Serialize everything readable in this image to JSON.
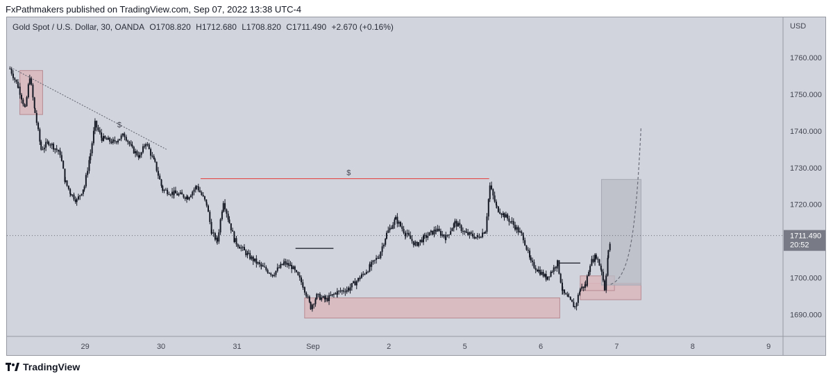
{
  "header": {
    "publisher_text": "FxPathmakers published on TradingView.com, Sep 07, 2022 13:38 UTC-4"
  },
  "legend": {
    "symbol": "Gold Spot / U.S. Dollar, 30, OANDA",
    "open": "O1708.820",
    "high": "H1712.680",
    "low": "L1708.820",
    "close": "C1711.490",
    "change": "+2.670 (+0.16%)"
  },
  "footer": {
    "brand": "TradingView"
  },
  "colors": {
    "background": "#d1d4dc",
    "candle": "#131722",
    "resistance_line": "#e53935",
    "zone_fill": "#d9b7bd",
    "zone_stroke": "#b88a92",
    "projection_box": "#b9bcc6"
  },
  "chart_data": {
    "type": "candlestick",
    "currency_label": "USD",
    "ylim": [
      1684,
      1771
    ],
    "y_ticks": [
      1690,
      1700,
      1710,
      1720,
      1730,
      1740,
      1750,
      1760
    ],
    "y_tick_labels": [
      "1690.000",
      "1700.000",
      "1710.000",
      "1720.000",
      "1730.000",
      "1740.000",
      "1750.000",
      "1760.000"
    ],
    "x_ticks": [
      {
        "label": "29",
        "t": 0.53
      },
      {
        "label": "30",
        "t": 1.53
      },
      {
        "label": "31",
        "t": 2.53
      },
      {
        "label": "Sep",
        "t": 3.53
      },
      {
        "label": "2",
        "t": 4.53
      },
      {
        "label": "5",
        "t": 5.53
      },
      {
        "label": "6",
        "t": 6.53
      },
      {
        "label": "7",
        "t": 7.53
      },
      {
        "label": "8",
        "t": 8.53
      },
      {
        "label": "9",
        "t": 9.53
      }
    ],
    "xlim": [
      -0.5,
      9.72
    ],
    "current_price": {
      "value": 1711.49,
      "label": "1711.490",
      "countdown": "20:52"
    },
    "price_path": [
      [
        -0.46,
        1757
      ],
      [
        -0.35,
        1752
      ],
      [
        -0.26,
        1746
      ],
      [
        -0.2,
        1755
      ],
      [
        -0.13,
        1745
      ],
      [
        -0.05,
        1735
      ],
      [
        0.05,
        1737
      ],
      [
        0.2,
        1734
      ],
      [
        0.27,
        1726
      ],
      [
        0.34,
        1723
      ],
      [
        0.42,
        1721
      ],
      [
        0.52,
        1725
      ],
      [
        0.6,
        1734
      ],
      [
        0.66,
        1742
      ],
      [
        0.75,
        1738
      ],
      [
        0.9,
        1737
      ],
      [
        1.05,
        1739
      ],
      [
        1.15,
        1735
      ],
      [
        1.25,
        1733
      ],
      [
        1.33,
        1737
      ],
      [
        1.45,
        1731
      ],
      [
        1.55,
        1724
      ],
      [
        1.7,
        1723
      ],
      [
        1.88,
        1722
      ],
      [
        2.0,
        1725
      ],
      [
        2.13,
        1720
      ],
      [
        2.2,
        1712
      ],
      [
        2.27,
        1710
      ],
      [
        2.35,
        1721
      ],
      [
        2.43,
        1715
      ],
      [
        2.5,
        1710
      ],
      [
        2.68,
        1706
      ],
      [
        2.85,
        1703
      ],
      [
        3.0,
        1701
      ],
      [
        3.15,
        1704
      ],
      [
        3.25,
        1703
      ],
      [
        3.4,
        1698
      ],
      [
        3.5,
        1692
      ],
      [
        3.58,
        1695
      ],
      [
        3.7,
        1694
      ],
      [
        3.85,
        1696
      ],
      [
        4.0,
        1697
      ],
      [
        4.15,
        1700
      ],
      [
        4.28,
        1703
      ],
      [
        4.4,
        1706
      ],
      [
        4.5,
        1712
      ],
      [
        4.62,
        1716
      ],
      [
        4.75,
        1712
      ],
      [
        4.88,
        1709
      ],
      [
        5.0,
        1711
      ],
      [
        5.15,
        1713
      ],
      [
        5.28,
        1711
      ],
      [
        5.4,
        1715
      ],
      [
        5.55,
        1712
      ],
      [
        5.7,
        1711
      ],
      [
        5.8,
        1713
      ],
      [
        5.86,
        1725
      ],
      [
        5.95,
        1719
      ],
      [
        6.05,
        1717
      ],
      [
        6.15,
        1715
      ],
      [
        6.3,
        1711
      ],
      [
        6.4,
        1704
      ],
      [
        6.5,
        1702
      ],
      [
        6.6,
        1700
      ],
      [
        6.68,
        1702
      ],
      [
        6.75,
        1704
      ],
      [
        6.82,
        1696
      ],
      [
        6.9,
        1694
      ],
      [
        6.98,
        1692
      ],
      [
        7.05,
        1697
      ],
      [
        7.12,
        1698
      ],
      [
        7.18,
        1704
      ],
      [
        7.26,
        1706
      ],
      [
        7.33,
        1702
      ],
      [
        7.37,
        1697
      ],
      [
        7.42,
        1707
      ],
      [
        7.46,
        1711.5
      ]
    ],
    "annotations": {
      "trendline": {
        "from": [
          -0.42,
          1757
        ],
        "to": [
          1.6,
          1735
        ]
      },
      "resistance": {
        "from": [
          2.05,
          1727
        ],
        "to": [
          5.85,
          1727
        ],
        "label": "$",
        "label_at": [
          4.0,
          1728
        ]
      },
      "dollar_marks": [
        {
          "label": "$",
          "at": [
            0.98,
            1741
          ]
        }
      ],
      "high_marks": [
        {
          "from": [
            3.3,
            1708
          ],
          "to": [
            3.8,
            1708
          ]
        },
        {
          "from": [
            6.78,
            1704
          ],
          "to": [
            7.05,
            1704
          ]
        }
      ],
      "zones": [
        {
          "x0": -0.33,
          "x1": -0.03,
          "y0": 1744.5,
          "y1": 1756.5
        },
        {
          "x0": 3.42,
          "x1": 6.78,
          "y0": 1689,
          "y1": 1694.5
        },
        {
          "x0": 7.05,
          "x1": 7.85,
          "y0": 1694,
          "y1": 1698.5
        },
        {
          "x0": 7.05,
          "x1": 7.5,
          "y0": 1696.5,
          "y1": 1700.5
        }
      ],
      "projection_box": {
        "x0": 7.33,
        "x1": 7.85,
        "y0": 1698,
        "y1": 1726.8
      },
      "projection_path": [
        [
          7.45,
          1698.2
        ],
        [
          7.7,
          1700
        ],
        [
          7.78,
          1712
        ],
        [
          7.85,
          1741
        ]
      ]
    }
  }
}
